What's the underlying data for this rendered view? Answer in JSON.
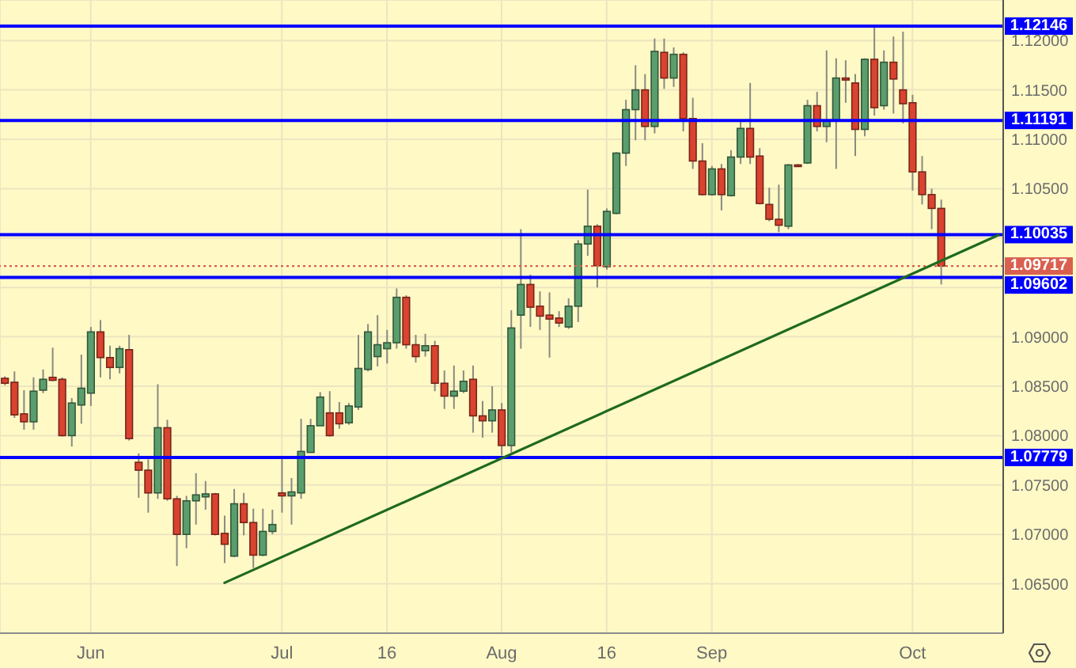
{
  "chart_data": {
    "type": "candlestick",
    "categories": [
      null,
      null,
      null,
      null,
      null,
      null,
      null,
      null,
      null,
      "Jun",
      null,
      null,
      null,
      null,
      null,
      null,
      null,
      null,
      null,
      null,
      null,
      null,
      null,
      null,
      null,
      null,
      null,
      null,
      null,
      "Jul",
      null,
      null,
      null,
      null,
      null,
      null,
      null,
      null,
      null,
      null,
      "16",
      null,
      null,
      null,
      null,
      null,
      null,
      null,
      null,
      null,
      null,
      null,
      "Aug",
      null,
      null,
      null,
      null,
      null,
      null,
      null,
      null,
      null,
      null,
      "16",
      null,
      null,
      null,
      null,
      null,
      null,
      null,
      null,
      null,
      null,
      "Sep",
      null,
      null,
      null,
      null,
      null,
      null,
      null,
      null,
      null,
      null,
      null,
      null,
      null,
      null,
      null,
      null,
      null,
      null,
      null,
      null,
      "Oct",
      null,
      null,
      null,
      null,
      null,
      null,
      null,
      null,
      null
    ],
    "series": [
      {
        "type": "candlestick",
        "ohlc": [
          [
            1.0858,
            1.086,
            1.0851,
            1.0853
          ],
          [
            1.0854,
            1.0865,
            1.0818,
            1.0821
          ],
          [
            1.0822,
            1.0846,
            1.0806,
            1.0814
          ],
          [
            1.0814,
            1.0859,
            1.0806,
            1.0845
          ],
          [
            1.0846,
            1.0867,
            1.0843,
            1.0857
          ],
          [
            1.0859,
            1.0889,
            1.0855,
            1.0856
          ],
          [
            1.0857,
            1.0859,
            1.0799,
            1.08
          ],
          [
            1.08,
            1.0838,
            1.0789,
            1.0833
          ],
          [
            1.0831,
            1.0882,
            1.0812,
            1.0848
          ],
          [
            1.0843,
            1.091,
            1.083,
            1.0905
          ],
          [
            1.0905,
            1.0917,
            1.0859,
            1.0879
          ],
          [
            1.0879,
            1.0891,
            1.0857,
            1.0869
          ],
          [
            1.0869,
            1.0891,
            1.0863,
            1.0888
          ],
          [
            1.0887,
            1.0902,
            1.0795,
            1.0797
          ],
          [
            1.0773,
            1.0782,
            1.0737,
            1.0765
          ],
          [
            1.0765,
            1.0776,
            1.0722,
            1.0742
          ],
          [
            1.0742,
            1.0852,
            1.0736,
            1.0808
          ],
          [
            1.0808,
            1.0816,
            1.0734,
            1.0736
          ],
          [
            1.0736,
            1.0739,
            1.0668,
            1.07
          ],
          [
            1.07,
            1.0739,
            1.0686,
            1.0734
          ],
          [
            1.0734,
            1.0762,
            1.071,
            1.074
          ],
          [
            1.0738,
            1.0754,
            1.0725,
            1.0741
          ],
          [
            1.0741,
            1.0742,
            1.0699,
            1.07
          ],
          [
            1.0701,
            1.0719,
            1.0671,
            1.069
          ],
          [
            1.0678,
            1.0746,
            1.0677,
            1.0731
          ],
          [
            1.0731,
            1.0742,
            1.0699,
            1.0712
          ],
          [
            1.0712,
            1.0726,
            1.0666,
            1.0679
          ],
          [
            1.0679,
            1.0726,
            1.0678,
            1.0703
          ],
          [
            1.0703,
            1.0725,
            1.07,
            1.071
          ],
          [
            1.0742,
            1.0777,
            1.0722,
            1.0739
          ],
          [
            1.0739,
            1.0757,
            1.071,
            1.0743
          ],
          [
            1.0742,
            1.0817,
            1.0736,
            1.0784
          ],
          [
            1.0783,
            1.0817,
            1.0783,
            1.081
          ],
          [
            1.081,
            1.0844,
            1.081,
            1.0839
          ],
          [
            1.0823,
            1.0845,
            1.0799,
            1.08
          ],
          [
            1.0823,
            1.0834,
            1.0807,
            1.0812
          ],
          [
            1.0813,
            1.0833,
            1.0811,
            1.083
          ],
          [
            1.0829,
            1.0902,
            1.0826,
            1.0868
          ],
          [
            1.0867,
            1.0913,
            1.0865,
            1.0905
          ],
          [
            1.088,
            1.0922,
            1.087,
            1.0892
          ],
          [
            1.0888,
            1.0907,
            1.0873,
            1.0894
          ],
          [
            1.0894,
            1.0949,
            1.0888,
            1.094
          ],
          [
            1.094,
            1.0942,
            1.0888,
            1.0892
          ],
          [
            1.0892,
            1.0902,
            1.0874,
            1.088
          ],
          [
            1.0886,
            1.0903,
            1.088,
            1.0891
          ],
          [
            1.0891,
            1.0896,
            1.0845,
            1.0853
          ],
          [
            1.0853,
            1.0866,
            1.0827,
            1.084
          ],
          [
            1.084,
            1.0871,
            1.0827,
            1.0845
          ],
          [
            1.0845,
            1.0866,
            1.0843,
            1.0855
          ],
          [
            1.0857,
            1.0871,
            1.0803,
            1.082
          ],
          [
            1.082,
            1.0835,
            1.0798,
            1.0815
          ],
          [
            1.0815,
            1.085,
            1.0803,
            1.0826
          ],
          [
            1.0826,
            1.0833,
            1.078,
            1.079
          ],
          [
            1.079,
            1.0927,
            1.0783,
            1.0909
          ],
          [
            1.0922,
            1.1009,
            1.0888,
            1.0953
          ],
          [
            1.0953,
            1.0963,
            1.091,
            1.093
          ],
          [
            1.0931,
            1.0946,
            1.0907,
            1.0921
          ],
          [
            1.0922,
            1.0945,
            1.0879,
            1.0918
          ],
          [
            1.0919,
            1.0926,
            1.091,
            1.0914
          ],
          [
            1.091,
            1.0939,
            1.0908,
            1.0931
          ],
          [
            1.0931,
            1.0998,
            1.0915,
            1.0994
          ],
          [
            1.0994,
            1.1049,
            1.0982,
            1.1012
          ],
          [
            1.1012,
            1.1014,
            1.095,
            1.0972
          ],
          [
            1.0971,
            1.103,
            1.0968,
            1.1027
          ],
          [
            1.1025,
            1.1087,
            1.1024,
            1.1086
          ],
          [
            1.1086,
            1.114,
            1.1073,
            1.113
          ],
          [
            1.113,
            1.1175,
            1.1099,
            1.115
          ],
          [
            1.115,
            1.1166,
            1.1099,
            1.1113
          ],
          [
            1.1113,
            1.1202,
            1.1106,
            1.1189
          ],
          [
            1.1188,
            1.1202,
            1.1151,
            1.1162
          ],
          [
            1.1162,
            1.1193,
            1.1153,
            1.1186
          ],
          [
            1.1186,
            1.1188,
            1.1108,
            1.1121
          ],
          [
            1.1121,
            1.1142,
            1.107,
            1.1078
          ],
          [
            1.1078,
            1.1096,
            1.1043,
            1.1044
          ],
          [
            1.1044,
            1.1073,
            1.1043,
            1.107
          ],
          [
            1.107,
            1.1075,
            1.1028,
            1.1044
          ],
          [
            1.1043,
            1.1089,
            1.1042,
            1.1082
          ],
          [
            1.1082,
            1.1119,
            1.1075,
            1.1111
          ],
          [
            1.1111,
            1.1157,
            1.1075,
            1.1082
          ],
          [
            1.1083,
            1.1091,
            1.1034,
            1.1035
          ],
          [
            1.1034,
            1.1051,
            1.1017,
            1.1019
          ],
          [
            1.1019,
            1.1054,
            1.1006,
            1.1013
          ],
          [
            1.1012,
            1.1075,
            1.1009,
            1.1074
          ],
          [
            1.1074,
            1.1075,
            1.1072,
            1.1073
          ],
          [
            1.1076,
            1.114,
            1.1075,
            1.1134
          ],
          [
            1.1134,
            1.1148,
            1.1108,
            1.1113
          ],
          [
            1.1113,
            1.119,
            1.1097,
            1.1119
          ],
          [
            1.1119,
            1.1182,
            1.107,
            1.1162
          ],
          [
            1.1162,
            1.118,
            1.1137,
            1.116
          ],
          [
            1.1157,
            1.1166,
            1.1083,
            1.111
          ],
          [
            1.111,
            1.1182,
            1.1103,
            1.1181
          ],
          [
            1.1181,
            1.1214,
            1.1124,
            1.1132
          ],
          [
            1.1134,
            1.119,
            1.113,
            1.1178
          ],
          [
            1.1178,
            1.1204,
            1.1126,
            1.1161
          ],
          [
            1.115,
            1.1209,
            1.1116,
            1.1136
          ],
          [
            1.1137,
            1.1145,
            1.1048,
            1.1067
          ],
          [
            1.1067,
            1.1083,
            1.1034,
            1.1044
          ],
          [
            1.1044,
            1.105,
            1.1009,
            1.103
          ],
          [
            1.103,
            1.1039,
            1.0953,
            1.09717
          ],
          null,
          null,
          null,
          null,
          null,
          null
        ],
        "colors": [
          "#d9432f",
          "#d9432f",
          "#d9432f",
          "#5b9e6d",
          "#5b9e6d",
          "#d9432f",
          "#d9432f",
          "#5b9e6d",
          "#5b9e6d",
          "#5b9e6d",
          "#d9432f",
          "#d9432f",
          "#5b9e6d",
          "#d9432f",
          "#d9432f",
          "#d9432f",
          "#5b9e6d",
          "#d9432f",
          "#d9432f",
          "#5b9e6d",
          "#5b9e6d",
          "#5b9e6d",
          "#d9432f",
          "#d9432f",
          "#5b9e6d",
          "#d9432f",
          "#d9432f",
          "#5b9e6d",
          "#5b9e6d",
          "#d9432f",
          "#5b9e6d",
          "#5b9e6d",
          "#5b9e6d",
          "#5b9e6d",
          "#d9432f",
          "#d9432f",
          "#5b9e6d",
          "#5b9e6d",
          "#5b9e6d",
          "#5b9e6d",
          "#5b9e6d",
          "#5b9e6d",
          "#d9432f",
          "#d9432f",
          "#5b9e6d",
          "#d9432f",
          "#d9432f",
          "#5b9e6d",
          "#5b9e6d",
          "#d9432f",
          "#d9432f",
          "#5b9e6d",
          "#d9432f",
          "#5b9e6d",
          "#5b9e6d",
          "#d9432f",
          "#d9432f",
          "#d9432f",
          "#d9432f",
          "#5b9e6d",
          "#5b9e6d",
          "#5b9e6d",
          "#d9432f",
          "#5b9e6d",
          "#5b9e6d",
          "#5b9e6d",
          "#5b9e6d",
          "#d9432f",
          "#5b9e6d",
          "#d9432f",
          "#5b9e6d",
          "#d9432f",
          "#d9432f",
          "#d9432f",
          "#5b9e6d",
          "#d9432f",
          "#5b9e6d",
          "#5b9e6d",
          "#d9432f",
          "#d9432f",
          "#d9432f",
          "#d9432f",
          "#5b9e6d",
          "#d9432f",
          "#5b9e6d",
          "#d9432f",
          "#5b9e6d",
          "#5b9e6d",
          "#d9432f",
          "#d9432f",
          "#5b9e6d",
          "#d9432f",
          "#5b9e6d",
          "#d9432f",
          "#d9432f",
          "#d9432f",
          "#d9432f",
          "#d9432f",
          "#d9432f",
          null,
          null,
          null,
          null,
          null,
          null
        ]
      },
      {
        "type": "line",
        "color": "#1f6a1f",
        "marker": "none",
        "line_style": "solid",
        "values": [
          null,
          null,
          null,
          null,
          null,
          null,
          null,
          null,
          null,
          null,
          null,
          null,
          null,
          null,
          null,
          null,
          null,
          null,
          null,
          null,
          null,
          null,
          null,
          1.0651,
          null,
          null,
          null,
          null,
          null,
          null,
          null,
          null,
          null,
          null,
          null,
          null,
          null,
          null,
          null,
          null,
          null,
          null,
          null,
          null,
          null,
          null,
          null,
          null,
          null,
          null,
          null,
          null,
          null,
          null,
          null,
          null,
          null,
          null,
          null,
          null,
          null,
          null,
          null,
          null,
          null,
          null,
          null,
          null,
          null,
          null,
          null,
          null,
          null,
          null,
          null,
          null,
          null,
          null,
          null,
          null,
          null,
          null,
          null,
          null,
          null,
          null,
          null,
          null,
          null,
          null,
          null,
          null,
          null,
          null,
          null,
          null,
          null,
          null,
          null,
          null,
          null,
          null,
          null,
          null,
          1.1003
        ]
      }
    ],
    "ylim": [
      1.06,
      1.1241
    ],
    "yticks": [
      {
        "value": 1.065,
        "label": "1.06500"
      },
      {
        "value": 1.07,
        "label": "1.07000"
      },
      {
        "value": 1.075,
        "label": "1.07500"
      },
      {
        "value": 1.08,
        "label": "1.08000"
      },
      {
        "value": 1.085,
        "label": "1.08500"
      },
      {
        "value": 1.09,
        "label": "1.09000"
      },
      {
        "value": 1.095,
        "label": null
      },
      {
        "value": 1.1,
        "label": null
      },
      {
        "value": 1.105,
        "label": "1.10500"
      },
      {
        "value": 1.11,
        "label": "1.11000"
      },
      {
        "value": 1.115,
        "label": "1.11500"
      },
      {
        "value": 1.12,
        "label": "1.12000"
      }
    ],
    "grid": true,
    "ref_lines": [
      {
        "axis": "y",
        "value": 1.12146,
        "label": "1.12146",
        "color": "#0000ff"
      },
      {
        "axis": "y",
        "value": 1.11191,
        "label": "1.11191",
        "color": "#0000ff"
      },
      {
        "axis": "y",
        "value": 1.10035,
        "label": "1.10035",
        "color": "#0000ff"
      },
      {
        "axis": "y",
        "value": 1.09717,
        "label": "1.09717",
        "color": "#d9604f",
        "line_style": "dotted"
      },
      {
        "axis": "y",
        "value": 1.09602,
        "label": "1.09602",
        "color": "#0000ff"
      },
      {
        "axis": "y",
        "value": 1.07779,
        "label": "1.07779",
        "color": "#0000ff"
      }
    ]
  }
}
